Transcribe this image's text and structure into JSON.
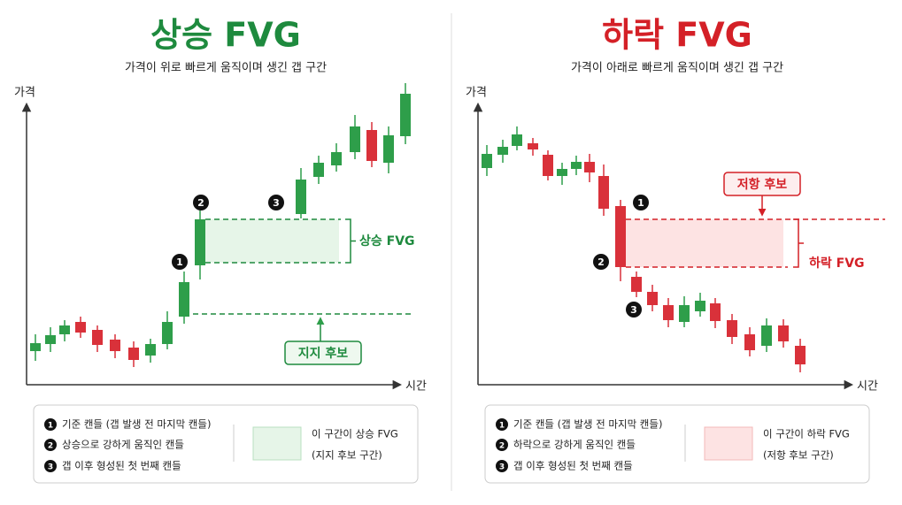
{
  "panels": [
    {
      "title": "상승 FVG",
      "subtitle": "가격이 위로 빠르게 움직이며 생긴 갭 구간",
      "y_axis_label": "가격",
      "x_axis_label": "시간",
      "markers": [
        "1",
        "2",
        "3"
      ],
      "fvg_label": "상승 FVG",
      "zone_label": "지지 후보",
      "legend": {
        "items": [
          "기준 캔들 (갭 발생 전 마지막 캔들)",
          "상승으로 강하게 움직인 캔들",
          "갭 이후 형성된 첫 번째 캔들"
        ],
        "zone_text": [
          "이 구간이 상승 FVG",
          "(지지 후보 구간)"
        ]
      }
    },
    {
      "title": "하락 FVG",
      "subtitle": "가격이 아래로 빠르게 움직이며 생긴 갭 구간",
      "y_axis_label": "가격",
      "x_axis_label": "시간",
      "markers": [
        "1",
        "2",
        "3"
      ],
      "fvg_label": "하락 FVG",
      "zone_label": "저항 후보",
      "legend": {
        "items": [
          "기준 캔들 (갭 발생 전 마지막 캔들)",
          "하락으로 강하게 움직인 캔들",
          "갭 이후 형성된 첫 번째 캔들"
        ],
        "zone_text": [
          "이 구간이 하락 FVG",
          "(저항 후보 구간)"
        ]
      }
    }
  ]
}
